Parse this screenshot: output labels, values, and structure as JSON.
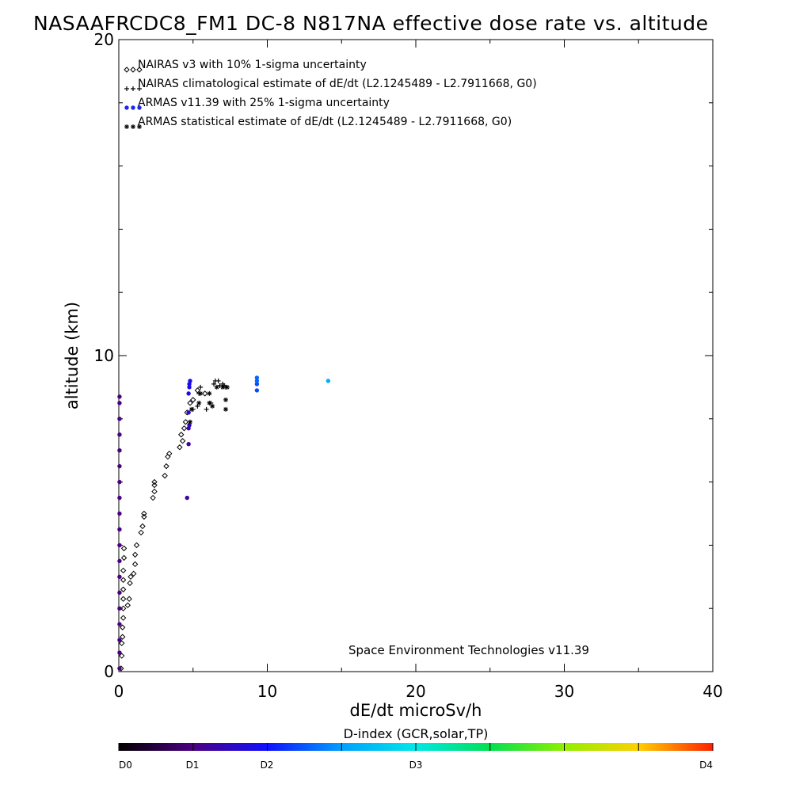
{
  "chart_data": {
    "type": "scatter",
    "title": "NASAAFRCDC8_FM1 DC-8   N817NA effective dose rate vs. altitude",
    "xlabel": "dE/dt microSv/h",
    "ylabel": "altitude (km)",
    "xlim": [
      0,
      40
    ],
    "ylim": [
      0,
      20
    ],
    "x_ticks": [
      0,
      10,
      20,
      30,
      40
    ],
    "x_tick_labels": [
      "0",
      "10",
      "20",
      "30",
      "40"
    ],
    "y_ticks": [
      0,
      10,
      20
    ],
    "y_tick_labels": [
      "0",
      "10",
      "20"
    ],
    "grid": false,
    "legend_position": "top-left",
    "credit": "Space Environment Technologies v11.39",
    "colorbar": {
      "title": "D-index (GCR,solar,TP)",
      "labels": [
        "D0",
        "D1",
        "D2",
        "D3",
        "D4"
      ],
      "label_positions": [
        0,
        1,
        2,
        3,
        4
      ]
    },
    "series": [
      {
        "name": "NAIRAS v3 with 10% 1-sigma uncertainty",
        "marker": "diamond",
        "color": "#000000",
        "points": [
          [
            0.15,
            0.1
          ],
          [
            0.2,
            0.5
          ],
          [
            0.2,
            0.9
          ],
          [
            0.25,
            1.1
          ],
          [
            0.25,
            1.4
          ],
          [
            0.3,
            1.7
          ],
          [
            0.3,
            2.0
          ],
          [
            0.3,
            2.3
          ],
          [
            0.3,
            2.6
          ],
          [
            0.3,
            2.9
          ],
          [
            0.3,
            3.2
          ],
          [
            0.35,
            3.6
          ],
          [
            0.35,
            3.9
          ],
          [
            0.6,
            2.1
          ],
          [
            0.7,
            2.3
          ],
          [
            0.75,
            2.8
          ],
          [
            0.8,
            3.0
          ],
          [
            1.0,
            3.1
          ],
          [
            1.1,
            3.4
          ],
          [
            1.1,
            3.7
          ],
          [
            1.2,
            4.0
          ],
          [
            1.5,
            4.4
          ],
          [
            1.6,
            4.6
          ],
          [
            1.7,
            4.9
          ],
          [
            1.7,
            5.0
          ],
          [
            2.3,
            5.5
          ],
          [
            2.4,
            5.7
          ],
          [
            2.4,
            5.9
          ],
          [
            2.4,
            6.0
          ],
          [
            3.1,
            6.2
          ],
          [
            3.2,
            6.5
          ],
          [
            3.3,
            6.8
          ],
          [
            3.4,
            6.9
          ],
          [
            4.1,
            7.1
          ],
          [
            4.3,
            7.3
          ],
          [
            4.2,
            7.5
          ],
          [
            4.4,
            7.7
          ],
          [
            4.5,
            7.9
          ],
          [
            4.6,
            8.2
          ],
          [
            4.8,
            8.5
          ],
          [
            5.0,
            8.6
          ],
          [
            5.3,
            8.9
          ],
          [
            5.8,
            8.8
          ]
        ]
      },
      {
        "name": "NAIRAS climatological estimate of dE/dt (L2.1245489 - L2.7911668, G0)",
        "marker": "plus",
        "color": "#000000",
        "points": [
          [
            5.0,
            8.3
          ],
          [
            5.3,
            8.4
          ],
          [
            5.4,
            8.8
          ],
          [
            5.5,
            9.0
          ],
          [
            5.9,
            8.3
          ],
          [
            6.2,
            8.5
          ],
          [
            6.4,
            9.1
          ],
          [
            6.5,
            9.2
          ],
          [
            6.7,
            9.2
          ],
          [
            6.8,
            9.05
          ],
          [
            7.0,
            9.1
          ],
          [
            7.1,
            9.05
          ],
          [
            7.2,
            9.0
          ]
        ]
      },
      {
        "name": "ARMAS v11.39 with 25% 1-sigma uncertainty",
        "marker": "dot",
        "color": "#1e28e6",
        "points": [
          [
            4.6,
            5.5,
            0.6
          ],
          [
            4.7,
            7.2,
            0.6
          ],
          [
            4.7,
            7.7,
            0.7
          ],
          [
            4.75,
            7.8,
            0.7
          ],
          [
            4.7,
            8.2,
            0.8
          ],
          [
            4.7,
            8.8,
            0.9
          ],
          [
            4.75,
            9.0,
            0.9
          ],
          [
            4.75,
            9.1,
            0.9
          ],
          [
            4.8,
            9.2,
            0.9
          ],
          [
            9.3,
            8.9,
            1.2
          ],
          [
            9.3,
            9.1,
            1.2
          ],
          [
            9.3,
            9.2,
            1.3
          ],
          [
            9.3,
            9.3,
            1.3
          ],
          [
            14.1,
            9.2,
            1.6
          ],
          [
            0.05,
            0.1,
            0.5
          ],
          [
            0.05,
            0.6,
            0.5
          ],
          [
            0.05,
            1.0,
            0.5
          ],
          [
            0.05,
            1.5,
            0.5
          ],
          [
            0.05,
            2.0,
            0.5
          ],
          [
            0.05,
            2.5,
            0.5
          ],
          [
            0.05,
            3.0,
            0.5
          ],
          [
            0.05,
            3.5,
            0.5
          ],
          [
            0.05,
            4.0,
            0.5
          ],
          [
            0.05,
            4.5,
            0.5
          ],
          [
            0.05,
            5.0,
            0.5
          ],
          [
            0.05,
            5.5,
            0.5
          ],
          [
            0.05,
            6.0,
            0.5
          ],
          [
            0.05,
            6.5,
            0.5
          ],
          [
            0.05,
            7.0,
            0.5
          ],
          [
            0.05,
            7.5,
            0.5
          ],
          [
            0.05,
            8.0,
            0.5
          ],
          [
            0.05,
            8.5,
            0.5
          ],
          [
            0.05,
            8.7,
            0.5
          ]
        ]
      },
      {
        "name": "ARMAS statistical estimate of dE/dt (L2.1245489 - L2.7911668, G0)",
        "marker": "asterisk",
        "color": "#000000",
        "points": [
          [
            4.8,
            7.9
          ],
          [
            4.9,
            8.3
          ],
          [
            5.4,
            8.5
          ],
          [
            5.5,
            8.8
          ],
          [
            6.1,
            8.5
          ],
          [
            6.1,
            8.8
          ],
          [
            6.3,
            8.4
          ],
          [
            6.6,
            9.0
          ],
          [
            7.0,
            9.0
          ],
          [
            7.2,
            8.3
          ],
          [
            7.2,
            8.6
          ],
          [
            7.3,
            9.0
          ]
        ]
      }
    ]
  }
}
